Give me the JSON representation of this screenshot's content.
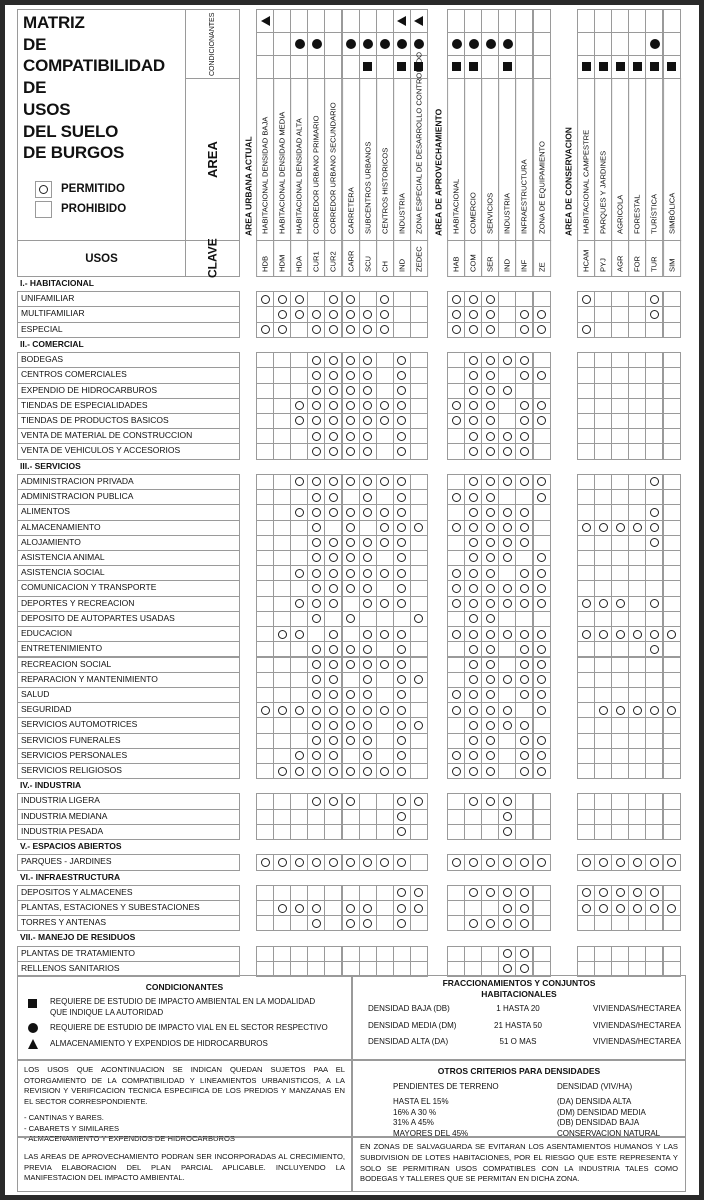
{
  "title_lines": [
    "MATRIZ",
    "DE",
    "COMPATIBILIDAD",
    "DE",
    "USOS",
    "DEL SUELO",
    "DE BURGOS"
  ],
  "legend": {
    "permitido": "PERMITIDO",
    "prohibido": "PROHIBIDO"
  },
  "header": {
    "condicionantes": "CONDICIONANTES",
    "area": "AREA",
    "usos": "USOS",
    "clave": "CLAVE"
  },
  "symbols": {
    "triangle": "triangle-left-icon",
    "circle": "filled-circle-icon",
    "square": "filled-square-icon",
    "permitido": "circle-outline-icon"
  },
  "groups": [
    {
      "label": "AREA URBANA ACTUAL",
      "cond": {
        "triangle": "1.......11",
        "circle": "..11.11111",
        "square": "......1.11"
      },
      "cols": [
        {
          "clave": "HDB",
          "name": "HABITACIONAL DENSIDAD BAJA"
        },
        {
          "clave": "HDM",
          "name": "HABITACIONAL DENSIDAD MEDIA"
        },
        {
          "clave": "HDA",
          "name": "HABITACIONAL DENSIDAD ALTA"
        },
        {
          "clave": "CUR1",
          "name": "CORREDOR URBANO PRIMARIO"
        },
        {
          "clave": "CUR2",
          "name": "CORREDOR URBANO SECUNDARIO"
        },
        {
          "clave": "CARR",
          "name": "CARRETERA"
        },
        {
          "clave": "SCU",
          "name": "SUBCENTROS URBANOS"
        },
        {
          "clave": "CH",
          "name": "CENTROS HISTORICOS"
        },
        {
          "clave": "IND",
          "name": "INDUSTRIA"
        },
        {
          "clave": "ZEDEC",
          "name": "ZONA ESPECIAL DE DESARROLLO CONTROLADO"
        }
      ]
    },
    {
      "label": "AREA DE APROVECHAMIENTO",
      "cond": {
        "triangle": "......",
        "circle": "1111..",
        "square": "11.1.."
      },
      "cols": [
        {
          "clave": "HAB",
          "name": "HABITACIONAL"
        },
        {
          "clave": "COM",
          "name": "COMERCIO"
        },
        {
          "clave": "SER",
          "name": "SERVICIOS"
        },
        {
          "clave": "IND",
          "name": "INDUSTRIA"
        },
        {
          "clave": "INF",
          "name": "INFRAESTRUCTURA"
        },
        {
          "clave": "ZE",
          "name": "ZONA DE EQUIPAMIENTO"
        }
      ]
    },
    {
      "label": "AREA DE CONSERVACION",
      "cond": {
        "triangle": "......",
        "circle": "....1.",
        "square": "111111"
      },
      "cols": [
        {
          "clave": "HCAM",
          "name": "HABITACIONAL CAMPESTRE"
        },
        {
          "clave": "PYJ",
          "name": "PARQUES Y JARDINES"
        },
        {
          "clave": "AGR",
          "name": "AGRICOLA"
        },
        {
          "clave": "FOR",
          "name": "FORESTAL"
        },
        {
          "clave": "TUR",
          "name": "TURÍSTICA"
        },
        {
          "clave": "SIM",
          "name": "SIMBÓLICA"
        }
      ]
    }
  ],
  "sections": [
    {
      "title": "I.- HABITACIONAL",
      "rows": [
        {
          "label": "UNIFAMILIAR",
          "v": "OOO.OO.O..|OOO...|O...O."
        },
        {
          "label": "MULTIFAMILIAR",
          "v": ".OOOOOOO..|OOO.OO|....O."
        },
        {
          "label": "ESPECIAL",
          "v": "OO.OOOOO..|OOO.OO|O....."
        }
      ]
    },
    {
      "title": "II.- COMERCIAL",
      "rows": [
        {
          "label": "BODEGAS",
          "v": "...OOOO.O.|.OOOO.|......"
        },
        {
          "label": "CENTROS COMERCIALES",
          "v": "...OOOO.O.|.OO.OO|......"
        },
        {
          "label": "EXPENDIO DE HIDROCARBUROS",
          "v": "...OOOO.O.|.OOO..|......"
        },
        {
          "label": "TIENDAS DE ESPECIALIDADES",
          "v": "..OOOOOOO.|OOO.OO|......"
        },
        {
          "label": "TIENDAS DE PRODUCTOS BASICOS",
          "v": "..OOOOOOO.|OOO.OO|......"
        },
        {
          "label": "VENTA DE MATERIAL DE CONSTRUCCION",
          "v": "...OOOO.O.|.OOOO.|......"
        },
        {
          "label": "VENTA DE VEHICULOS Y ACCESORIOS",
          "v": "...OOOO.O.|.OOOO.|......"
        }
      ]
    },
    {
      "title": "III.- SERVICIOS",
      "rows": [
        {
          "label": "ADMINISTRACION PRIVADA",
          "v": "..OOOOOOO.|.OOOOO|....O."
        },
        {
          "label": "ADMINISTRACION PUBLICA",
          "v": "...OO.O.O.|OOO..O|......"
        },
        {
          "label": "ALIMENTOS",
          "v": "..OOOOOOO.|.OOOO.|....O."
        },
        {
          "label": "ALMACENAMIENTO",
          "v": "...O.O.OOO|OOOOO.|OOOOO."
        },
        {
          "label": "ALOJAMIENTO",
          "v": "...OOOOOO.|.OOOO.|....O."
        },
        {
          "label": "ASISTENCIA ANIMAL",
          "v": "...OOOO.O.|.OOO.O|......"
        },
        {
          "label": "ASISTENCIA SOCIAL",
          "v": "..OOOOOOO.|OOO.OO|......"
        },
        {
          "label": "COMUNICACION Y TRANSPORTE",
          "v": "...OOOO.O.|OOOOOO|......"
        },
        {
          "label": "DEPORTES Y RECREACION",
          "v": "..OOO.OOO.|OOOOOO|OOO.O."
        },
        {
          "label": "DEPOSITO DE AUTOPARTES USADAS",
          "v": "...O.O...O|.OO...|......"
        },
        {
          "label": "EDUCACION",
          "v": ".OO.O.OOO.|OOOOOO|OOOOOO"
        },
        {
          "label": "ENTRETENIMIENTO",
          "v": "...OOOO.O.|.OO.OO|....O."
        },
        {
          "label": "RECREACION SOCIAL",
          "v": "...OOOOOO.|.OO.OO|......"
        },
        {
          "label": "REPARACION Y MANTENIMIENTO",
          "v": "...OO.O.OO|.OOOOO|......"
        },
        {
          "label": "SALUD",
          "v": "...OOOO.O.|OOO.OO|......"
        },
        {
          "label": "SEGURIDAD",
          "v": "OOOOOOOOO.|OOOO.O|.OOOOO"
        },
        {
          "label": "SERVICIOS AUTOMOTRICES",
          "v": "...OOOO.OO|.OOOO.|......"
        },
        {
          "label": "SERVICIOS FUNERALES",
          "v": "...OOOO.O.|.OO.OO|......"
        },
        {
          "label": "SERVICIOS PERSONALES",
          "v": "..OOO.O.O.|OOO.OO|......"
        },
        {
          "label": "SERVICIOS RELIGIOSOS",
          "v": ".OOOOOOOO.|OOO.OO|......"
        }
      ]
    },
    {
      "title": "IV.- INDUSTRIA",
      "rows": [
        {
          "label": "INDUSTRIA LIGERA",
          "v": "...OOO..OO|.OOO..|......"
        },
        {
          "label": "INDUSTRIA MEDIANA",
          "v": "........O.|...O..|......"
        },
        {
          "label": "INDUSTRIA PESADA",
          "v": "........O.|...O..|......"
        }
      ]
    },
    {
      "title": "V.- ESPACIOS ABIERTOS",
      "rows": [
        {
          "label": "PARQUES - JARDINES",
          "v": "OOOOOOOOO.|OOOOOO|OOOOOO"
        }
      ]
    },
    {
      "title": "VI.- INFRAESTRUCTURA",
      "rows": [
        {
          "label": "DEPOSITOS Y ALMACENES",
          "v": "........OO|.OOOO.|OOOOO."
        },
        {
          "label": "PLANTAS, ESTACIONES Y SUBESTACIONES",
          "v": ".OOO.OO.OO|...OO.|OOOOOO"
        },
        {
          "label": "TORRES Y ANTENAS",
          "v": "...O.OO.O.|.OOOO.|......"
        }
      ]
    },
    {
      "title": "VII.- MANEJO DE RESIDUOS",
      "rows": [
        {
          "label": "PLANTAS DE TRATAMIENTO",
          "v": "..........|...OO.|......"
        },
        {
          "label": "RELLENOS SANITARIOS",
          "v": "..........|...OO.|......"
        }
      ]
    }
  ],
  "condicionantes_legend": {
    "title": "CONDICIONANTES",
    "items": [
      {
        "icon": "filled-square-icon",
        "text": "REQUIERE DE ESTUDIO DE IMPACTO AMBIENTAL EN LA MODALIDAD  QUE INDIQUE LA AUTORIDAD"
      },
      {
        "icon": "filled-circle-icon",
        "text": "REQUIERE DE ESTUDIO DE IMPACTO VIAL EN EL SECTOR RESPECTIVO"
      },
      {
        "icon": "triangle-up-icon",
        "text": "ALMACENAMIENTO Y EXPENDIOS DE HIDROCARBUROS"
      }
    ]
  },
  "fraccionamientos": {
    "title": "FRACCIONAMIENTOS Y CONJUNTOS HABITACIONALES",
    "rows": [
      {
        "name": "DENSIDAD BAJA (DB)",
        "range": "1 HASTA 20",
        "unit": "VIVIENDAS/HECTAREA"
      },
      {
        "name": "DENSIDAD MEDIA (DM)",
        "range": "21 HASTA 50",
        "unit": "VIVIENDAS/HECTAREA"
      },
      {
        "name": "DENSIDAD ALTA (DA)",
        "range": "51 O MAS",
        "unit": "VIVIENDAS/HECTAREA"
      }
    ]
  },
  "usos_sujetos": {
    "text": "LOS USOS QUE ACONTINUACION SE INDICAN QUEDAN SUJETOS PAA EL OTORGAMIENTO DE LA COMPATIBILIDAD Y LINEAMIENTOS URBANISTICOS, A LA REVISION Y VERIFICACION TECNICA ESPECIFICA DE LOS PREDIOS Y MANZANAS EN EL SECTOR CORRESPONDIENTE.",
    "items": [
      "- CANTINAS Y BARES.",
      "- CABARETS Y SIMILARES",
      "- ALMACENAMIENTO Y EXPENDIOS DE HIDROCARBUROS"
    ]
  },
  "otros_criterios": {
    "title": "OTROS CRITERIOS PARA DENSIDADES",
    "head": [
      "PENDIENTES DE TERRENO",
      "DENSIDAD (VIV/HA)"
    ],
    "rows": [
      [
        "HASTA EL 15%",
        "(DA) DENSIDA ALTA"
      ],
      [
        "16%  A  30 %",
        "(DM) DENSIDAD MEDIA"
      ],
      [
        "31%  A  45%",
        "(DB) DENSIDAD BAJA"
      ],
      [
        "MAYORES DEL 45%",
        "CONSERVACION NATURAL"
      ]
    ]
  },
  "nota_aprovechamiento": "LAS AREAS DE APROVECHAMIENTO PODRAN SER INCORPORADAS AL CRECIMIENTO, PREVIA ELABORACION DEL PLAN PARCIAL APLICABLE. INCLUYENDO LA MANIFESTACION DEL IMPACTO AMBIENTAL.",
  "nota_salvaguarda": "EN ZONAS DE SALVAGUARDA SE EVITARAN LOS ASENTAMIENTOS HUMANOS Y LAS SUBDIVISION DE LOTES HABITACIONES, POR EL RIESGO QUE ESTE REPRESENTA Y SOLO SE PERMITIRAN USOS COMPATIBLES CON LA INDUSTRIA TALES COMO BODEGAS Y TALLERES QUE SE PERMITAN EN DICHA ZONA."
}
